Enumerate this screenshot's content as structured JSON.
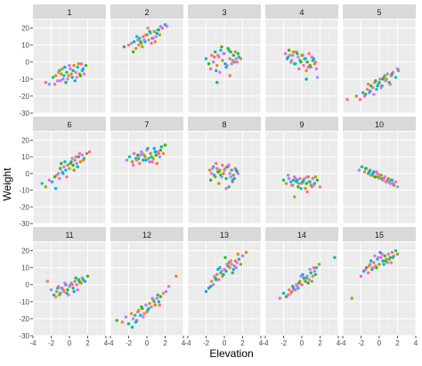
{
  "chart_data": {
    "type": "scatter",
    "xlabel": "Elevation",
    "ylabel": "Weight",
    "xlim": [
      -4,
      4
    ],
    "ylim": [
      -30,
      25
    ],
    "x_ticks": [
      -4,
      -2,
      0,
      2,
      4
    ],
    "y_ticks": [
      -30,
      -20,
      -10,
      0,
      10,
      20
    ],
    "grid": true,
    "legend": "none",
    "panel_background": "#ebebeb",
    "strip_background": "#d9d9d9",
    "point_colors": [
      "#f8766d",
      "#e7861b",
      "#a3a500",
      "#39b600",
      "#00bf7d",
      "#00bfc4",
      "#00a9ff",
      "#9590ff",
      "#e76bf3",
      "#ff62bc"
    ],
    "facets": [
      {
        "label": "1",
        "x": [
          -2.6,
          -2.2,
          -1.8,
          -1.5,
          -1.3,
          -1.1,
          -0.9,
          -0.7,
          -0.5,
          -0.3,
          -0.1,
          0.1,
          0.3,
          0.5,
          0.7,
          0.9,
          1.1,
          1.3,
          1.5,
          1.8,
          -1.6,
          -1.0,
          -0.4,
          0.2,
          0.8,
          1.4,
          -0.8,
          0.0,
          0.6,
          1.2,
          -1.2,
          -0.2,
          0.4,
          1.0,
          1.6,
          -0.6
        ],
        "y": [
          -12,
          -13,
          -9,
          -8,
          -11,
          -5,
          -7,
          -10,
          -3,
          -6,
          -8,
          -4,
          -9,
          -2,
          -6,
          -3,
          -7,
          -1,
          -4,
          -2,
          -13,
          -11,
          -12,
          -7,
          -9,
          -5,
          -4,
          -2,
          -11,
          -8,
          -6,
          -10,
          -5,
          -1,
          -7,
          -8
        ]
      },
      {
        "label": "2",
        "x": [
          -2.5,
          -2.0,
          -1.7,
          -1.4,
          -1.2,
          -1.0,
          -0.8,
          -0.6,
          -0.4,
          -0.2,
          0.0,
          0.2,
          0.4,
          0.6,
          0.8,
          1.0,
          1.2,
          1.4,
          1.7,
          2.0,
          -1.5,
          -0.9,
          -0.3,
          0.3,
          0.9,
          1.5,
          -1.1,
          -0.5,
          0.5,
          1.1,
          -0.7,
          0.1,
          0.7,
          1.3,
          -0.1,
          2.2
        ],
        "y": [
          9,
          10,
          11,
          12,
          8,
          13,
          14,
          11,
          15,
          12,
          16,
          13,
          17,
          14,
          18,
          15,
          19,
          16,
          20,
          22,
          6,
          10,
          13,
          18,
          12,
          21,
          15,
          9,
          11,
          17,
          12,
          20,
          14,
          19,
          16,
          21
        ]
      },
      {
        "label": "3",
        "x": [
          -2.0,
          -1.7,
          -1.4,
          -1.2,
          -1.0,
          -0.8,
          -0.6,
          -0.4,
          -0.2,
          0.0,
          0.2,
          0.4,
          0.6,
          0.8,
          1.0,
          1.2,
          1.4,
          1.6,
          1.8,
          -1.5,
          -0.9,
          -0.3,
          0.3,
          0.9,
          1.5,
          -1.1,
          -0.5,
          0.5,
          1.1,
          -0.7,
          0.1,
          0.7,
          1.3,
          -0.1,
          -0.8,
          0.6
        ],
        "y": [
          2,
          -1,
          4,
          0,
          6,
          -2,
          3,
          7,
          1,
          5,
          -3,
          8,
          2,
          -1,
          4,
          6,
          0,
          3,
          2,
          -4,
          -5,
          9,
          -2,
          1,
          5,
          3,
          -6,
          7,
          0,
          4,
          -1,
          6,
          2,
          5,
          -12,
          -8
        ]
      },
      {
        "label": "4",
        "x": [
          -1.8,
          -1.6,
          -1.4,
          -1.2,
          -1.0,
          -0.8,
          -0.6,
          -0.4,
          -0.2,
          0.0,
          0.2,
          0.4,
          0.6,
          0.8,
          1.0,
          1.2,
          1.4,
          1.6,
          -1.5,
          -0.9,
          -0.3,
          0.3,
          0.9,
          1.5,
          -1.1,
          -0.5,
          0.5,
          1.1,
          -0.7,
          0.1,
          0.7,
          1.3,
          -0.1,
          -1.3,
          1.7,
          0.5
        ],
        "y": [
          5,
          2,
          7,
          0,
          4,
          -1,
          6,
          3,
          1,
          4,
          -2,
          2,
          0,
          5,
          -3,
          1,
          -1,
          -4,
          3,
          6,
          -4,
          2,
          -2,
          0,
          1,
          5,
          -5,
          3,
          -1,
          4,
          -3,
          2,
          0,
          4,
          -9,
          -10
        ]
      },
      {
        "label": "5",
        "x": [
          -2.5,
          -2.1,
          -1.8,
          -1.5,
          -1.3,
          -1.1,
          -0.9,
          -0.7,
          -0.5,
          -0.3,
          -0.1,
          0.1,
          0.3,
          0.5,
          0.7,
          0.9,
          1.1,
          1.3,
          1.5,
          1.8,
          2.1,
          -1.6,
          -1.0,
          -0.4,
          0.2,
          0.8,
          1.4,
          -1.2,
          -0.6,
          0.0,
          0.6,
          1.2,
          -0.2,
          0.4,
          -3.5,
          2.0
        ],
        "y": [
          -20,
          -22,
          -18,
          -19,
          -16,
          -18,
          -14,
          -15,
          -12,
          -16,
          -13,
          -10,
          -14,
          -9,
          -11,
          -7,
          -12,
          -8,
          -6,
          -9,
          -5,
          -20,
          -17,
          -11,
          -15,
          -10,
          -7,
          -13,
          -19,
          -12,
          -8,
          -13,
          -14,
          -10,
          -22,
          -4
        ]
      },
      {
        "label": "6",
        "x": [
          -3.0,
          -2.6,
          -2.2,
          -1.9,
          -1.6,
          -1.4,
          -1.2,
          -1.0,
          -0.8,
          -0.6,
          -0.4,
          -0.2,
          0.0,
          0.2,
          0.4,
          0.6,
          0.8,
          1.0,
          1.2,
          1.4,
          1.6,
          1.9,
          2.2,
          -1.5,
          -0.9,
          -0.3,
          0.3,
          0.9,
          1.5,
          -1.1,
          -0.5,
          0.5,
          1.1,
          -0.7,
          0.1,
          0.7
        ],
        "y": [
          -6,
          -8,
          -4,
          -5,
          -2,
          -1,
          0,
          3,
          1,
          4,
          2,
          5,
          3,
          7,
          5,
          8,
          6,
          10,
          7,
          11,
          9,
          12,
          13,
          -9,
          6,
          -2,
          9,
          4,
          8,
          -3,
          7,
          2,
          12,
          0,
          6,
          10
        ]
      },
      {
        "label": "7",
        "x": [
          -2.2,
          -1.9,
          -1.6,
          -1.4,
          -1.2,
          -1.0,
          -0.8,
          -0.6,
          -0.4,
          -0.2,
          0.0,
          0.2,
          0.4,
          0.6,
          0.8,
          1.0,
          1.2,
          1.4,
          1.6,
          1.8,
          -1.5,
          -0.9,
          -0.3,
          0.3,
          0.9,
          1.5,
          -1.1,
          -0.5,
          0.5,
          1.1,
          -0.7,
          0.1,
          0.7,
          1.3,
          -0.1,
          2.0
        ],
        "y": [
          8,
          10,
          7,
          12,
          9,
          11,
          6,
          13,
          8,
          10,
          14,
          9,
          12,
          7,
          15,
          11,
          13,
          10,
          16,
          12,
          5,
          9,
          11,
          7,
          13,
          14,
          8,
          12,
          10,
          6,
          11,
          15,
          9,
          12,
          8,
          17
        ]
      },
      {
        "label": "8",
        "x": [
          -1.6,
          -1.4,
          -1.2,
          -1.0,
          -0.8,
          -0.6,
          -0.4,
          -0.2,
          0.0,
          0.2,
          0.4,
          0.6,
          0.8,
          1.0,
          1.2,
          1.4,
          -1.5,
          -0.9,
          -0.3,
          0.3,
          0.9,
          1.5,
          -1.1,
          -0.5,
          0.5,
          1.1,
          -0.7,
          0.1,
          0.7,
          1.3,
          -0.1,
          -1.3,
          0.5,
          -0.6,
          0.2,
          0.9
        ],
        "y": [
          2,
          0,
          4,
          -2,
          3,
          1,
          -1,
          5,
          2,
          -3,
          4,
          0,
          2,
          -1,
          3,
          1,
          -4,
          6,
          -2,
          4,
          -5,
          0,
          -1,
          2,
          5,
          -3,
          1,
          3,
          -2,
          2,
          0,
          3,
          -8,
          -6,
          -9,
          -4
        ]
      },
      {
        "label": "9",
        "x": [
          -2.0,
          -1.7,
          -1.4,
          -1.2,
          -1.0,
          -0.8,
          -0.6,
          -0.4,
          -0.2,
          0.0,
          0.2,
          0.4,
          0.6,
          0.8,
          1.0,
          1.2,
          1.4,
          1.7,
          2.0,
          -1.5,
          -0.9,
          -0.3,
          0.3,
          0.9,
          1.5,
          -1.1,
          -0.5,
          0.5,
          1.1,
          -0.7,
          0.1,
          0.7,
          1.3,
          -0.1,
          -0.8,
          0.6
        ],
        "y": [
          -4,
          -6,
          -3,
          -5,
          -7,
          -2,
          -5,
          -8,
          -3,
          -6,
          -4,
          -9,
          -2,
          -5,
          -7,
          -3,
          -6,
          -4,
          -8,
          -1,
          -4,
          -6,
          -3,
          -5,
          -2,
          -7,
          -4,
          -6,
          -8,
          -3,
          -5,
          -2,
          -7,
          -9,
          -14,
          -11
        ]
      },
      {
        "label": "10",
        "x": [
          -2.2,
          -1.9,
          -1.6,
          -1.4,
          -1.2,
          -1.0,
          -0.8,
          -0.6,
          -0.4,
          -0.2,
          0.0,
          0.2,
          0.4,
          0.6,
          0.8,
          1.0,
          1.2,
          1.4,
          1.6,
          1.8,
          2.0,
          -1.5,
          -0.9,
          -0.3,
          0.3,
          0.9,
          1.5,
          -1.1,
          -0.5,
          0.5,
          1.1,
          -0.7,
          0.1,
          0.7,
          1.3,
          -0.1
        ],
        "y": [
          2,
          4,
          1,
          3,
          0,
          2,
          -1,
          1,
          -2,
          0,
          -3,
          -1,
          -4,
          -2,
          -5,
          -3,
          -6,
          -4,
          -7,
          -5,
          -8,
          3,
          -1,
          1,
          -3,
          -4,
          -6,
          1,
          -2,
          -3,
          -5,
          0,
          -1,
          -5,
          -4,
          -2
        ]
      },
      {
        "label": "11",
        "x": [
          -2.4,
          -2.0,
          -1.7,
          -1.4,
          -1.2,
          -1.0,
          -0.8,
          -0.6,
          -0.4,
          -0.2,
          0.0,
          0.2,
          0.4,
          0.6,
          0.8,
          1.0,
          1.2,
          1.4,
          1.7,
          2.0,
          -1.5,
          -0.9,
          -0.3,
          0.3,
          0.9,
          1.5,
          -1.1,
          -0.5,
          0.5,
          1.1,
          -0.7,
          0.1,
          0.7,
          1.3,
          -0.1,
          -1.3
        ],
        "y": [
          2,
          -3,
          -6,
          -4,
          -1,
          -5,
          -2,
          -4,
          0,
          -3,
          -1,
          1,
          -2,
          2,
          0,
          3,
          1,
          4,
          2,
          5,
          -7,
          -2,
          -5,
          0,
          -3,
          3,
          -6,
          1,
          -4,
          2,
          -3,
          0,
          4,
          1,
          -6,
          -2
        ]
      },
      {
        "label": "12",
        "x": [
          -3.3,
          -2.7,
          -2.3,
          -2.0,
          -1.7,
          -1.5,
          -1.3,
          -1.1,
          -0.9,
          -0.7,
          -0.5,
          -0.3,
          -0.1,
          0.1,
          0.3,
          0.5,
          0.7,
          0.9,
          1.1,
          1.3,
          1.5,
          1.8,
          2.1,
          -1.6,
          -1.0,
          -0.4,
          0.2,
          0.8,
          1.4,
          -1.2,
          -0.6,
          0.0,
          0.6,
          1.2,
          3.2,
          2.4
        ],
        "y": [
          -21,
          -22,
          -19,
          -23,
          -17,
          -20,
          -18,
          -21,
          -15,
          -18,
          -14,
          -17,
          -12,
          -15,
          -11,
          -13,
          -9,
          -12,
          -8,
          -10,
          -7,
          -5,
          -4,
          -25,
          -16,
          -19,
          -14,
          -10,
          -12,
          -22,
          -13,
          -16,
          -8,
          -6,
          5,
          -1
        ]
      },
      {
        "label": "13",
        "x": [
          -2.0,
          -1.7,
          -1.4,
          -1.2,
          -1.0,
          -0.8,
          -0.6,
          -0.4,
          -0.2,
          0.0,
          0.2,
          0.4,
          0.6,
          0.8,
          1.0,
          1.2,
          1.4,
          1.6,
          1.8,
          2.0,
          -1.5,
          -0.9,
          -0.3,
          0.3,
          0.9,
          1.5,
          -1.1,
          -0.5,
          0.5,
          1.1,
          -0.7,
          0.1,
          0.7,
          1.3,
          -0.1,
          2.4
        ],
        "y": [
          -4,
          -2,
          2,
          0,
          4,
          6,
          3,
          7,
          5,
          9,
          8,
          11,
          10,
          12,
          9,
          14,
          13,
          15,
          12,
          17,
          -1,
          3,
          8,
          12,
          7,
          18,
          5,
          10,
          13,
          11,
          9,
          16,
          14,
          10,
          6,
          19
        ]
      },
      {
        "label": "14",
        "x": [
          -2.4,
          -2.0,
          -1.7,
          -1.4,
          -1.2,
          -1.0,
          -0.8,
          -0.6,
          -0.4,
          -0.2,
          0.0,
          0.2,
          0.4,
          0.6,
          0.8,
          1.0,
          1.2,
          1.4,
          1.6,
          1.9,
          -1.5,
          -0.9,
          -0.3,
          0.3,
          0.9,
          1.5,
          -1.1,
          -0.5,
          0.5,
          1.1,
          -0.7,
          0.1,
          0.7,
          1.3,
          -0.1,
          3.6
        ],
        "y": [
          -8,
          -5,
          -7,
          -3,
          -5,
          -1,
          -3,
          0,
          -2,
          2,
          0,
          4,
          2,
          5,
          3,
          7,
          5,
          8,
          10,
          12,
          -6,
          -2,
          1,
          3,
          9,
          6,
          -4,
          -1,
          4,
          2,
          -3,
          6,
          1,
          10,
          5,
          16
        ]
      },
      {
        "label": "15",
        "x": [
          -3.0,
          -2.0,
          -1.7,
          -1.4,
          -1.2,
          -1.0,
          -0.8,
          -0.6,
          -0.4,
          -0.2,
          0.0,
          0.2,
          0.4,
          0.6,
          0.8,
          1.0,
          1.2,
          1.4,
          1.6,
          1.8,
          2.0,
          -1.5,
          -0.9,
          -0.3,
          0.3,
          0.9,
          1.5,
          -1.1,
          -0.5,
          0.5,
          1.1,
          -0.7,
          0.1,
          0.7,
          1.3,
          -0.1
        ],
        "y": [
          -8,
          5,
          8,
          10,
          7,
          12,
          9,
          13,
          11,
          15,
          12,
          16,
          14,
          17,
          15,
          18,
          16,
          19,
          17,
          20,
          18,
          9,
          14,
          10,
          18,
          13,
          16,
          11,
          17,
          12,
          15,
          10,
          19,
          14,
          13,
          16
        ]
      }
    ]
  }
}
